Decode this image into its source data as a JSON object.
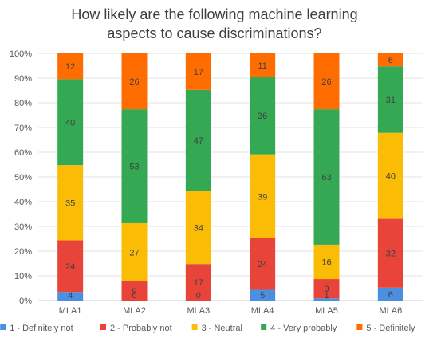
{
  "chart_data": {
    "type": "bar",
    "stacked": "percent",
    "title": "How likely are the following machine learning aspects to cause discriminations?",
    "title_lines": [
      "How likely are the following machine learning",
      "aspects to cause discriminations?"
    ],
    "categories": [
      "MLA1",
      "MLA2",
      "MLA3",
      "MLA4",
      "MLA5",
      "MLA6"
    ],
    "y_ticks": [
      "0%",
      "10%",
      "20%",
      "30%",
      "40%",
      "50%",
      "60%",
      "70%",
      "80%",
      "90%",
      "100%"
    ],
    "ylim": [
      0,
      100
    ],
    "grid": true,
    "legend_position": "bottom",
    "series": [
      {
        "name": "1 - Definitely not",
        "color": "#4a8fe0",
        "values": [
          4,
          0,
          0,
          5,
          1,
          6
        ]
      },
      {
        "name": "2 - Probably not",
        "color": "#e8443a",
        "values": [
          24,
          9,
          17,
          24,
          9,
          32
        ]
      },
      {
        "name": "3 - Neutral",
        "color": "#fbbc05",
        "values": [
          35,
          27,
          34,
          39,
          16,
          40
        ]
      },
      {
        "name": "4 - Very probably",
        "color": "#34a853",
        "values": [
          40,
          53,
          47,
          36,
          63,
          31
        ]
      },
      {
        "name": "5 - Definitely",
        "color": "#ff6d01",
        "values": [
          12,
          26,
          17,
          11,
          26,
          6
        ]
      }
    ]
  }
}
